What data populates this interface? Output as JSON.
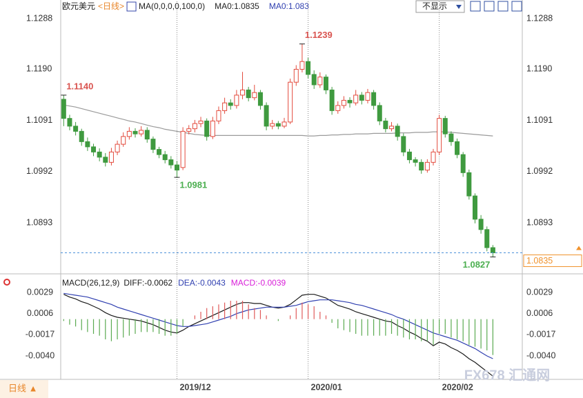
{
  "header": {
    "symbol": "欧元美元",
    "period": "<日线>",
    "ma_label": "MA(0,0,0,0,100,0)",
    "ma_value": "MA0:1.0835",
    "ma_value_alt": "MA0:1.083",
    "dropdown": "不显示"
  },
  "footer": {
    "period": "日线 ▲",
    "watermark": "FX678 汇通网"
  },
  "chart_data": [
    {
      "type": "candlestick",
      "categories": [
        null,
        null,
        null,
        null,
        null,
        null,
        null,
        null,
        null,
        null,
        null,
        null,
        null,
        null,
        null,
        null,
        null,
        null,
        null,
        "2019/12",
        null,
        null,
        null,
        null,
        null,
        null,
        null,
        null,
        null,
        null,
        null,
        null,
        null,
        null,
        null,
        null,
        null,
        null,
        null,
        null,
        null,
        "2020/01",
        null,
        null,
        null,
        null,
        null,
        null,
        null,
        null,
        null,
        null,
        null,
        null,
        null,
        null,
        null,
        null,
        null,
        null,
        null,
        null,
        null,
        "2020/02",
        null,
        null,
        null,
        null,
        null,
        null,
        null,
        null,
        null
      ],
      "values": [
        [
          1.1132,
          1.114,
          1.108,
          1.1095
        ],
        [
          1.1095,
          1.1102,
          1.1072,
          1.108
        ],
        [
          1.108,
          1.1088,
          1.1062,
          1.107
        ],
        [
          1.107,
          1.1075,
          1.1042,
          1.105
        ],
        [
          1.105,
          1.1058,
          1.1032,
          1.104
        ],
        [
          1.104,
          1.1046,
          1.1022,
          1.103
        ],
        [
          1.103,
          1.1037,
          1.1012,
          1.102
        ],
        [
          1.102,
          1.1028,
          1.1002,
          1.101
        ],
        [
          1.101,
          1.1038,
          1.1004,
          1.103
        ],
        [
          1.103,
          1.1052,
          1.1024,
          1.1045
        ],
        [
          1.1045,
          1.1068,
          1.104,
          1.106
        ],
        [
          1.106,
          1.1078,
          1.1054,
          1.107
        ],
        [
          1.107,
          1.1076,
          1.1058,
          1.1065
        ],
        [
          1.1065,
          1.108,
          1.106,
          1.1072
        ],
        [
          1.1072,
          1.1078,
          1.1048,
          1.1055
        ],
        [
          1.1055,
          1.106,
          1.1028,
          1.1035
        ],
        [
          1.1035,
          1.104,
          1.1018,
          1.1025
        ],
        [
          1.1025,
          1.1032,
          1.1008,
          1.1015
        ],
        [
          1.1015,
          1.1022,
          1.0998,
          1.1005
        ],
        [
          1.1005,
          1.1012,
          1.0981,
          1.0995
        ],
        [
          1.1,
          1.1078,
          1.0995,
          1.107
        ],
        [
          1.107,
          1.1082,
          1.1064,
          1.1075
        ],
        [
          1.1075,
          1.1092,
          1.1068,
          1.1085
        ],
        [
          1.1085,
          1.1098,
          1.1078,
          1.109
        ],
        [
          1.109,
          1.1095,
          1.1052,
          1.106
        ],
        [
          1.106,
          1.1098,
          1.1055,
          1.109
        ],
        [
          1.109,
          1.1118,
          1.1084,
          1.111
        ],
        [
          1.111,
          1.1135,
          1.1104,
          1.1125
        ],
        [
          1.1125,
          1.1132,
          1.1112,
          1.112
        ],
        [
          1.112,
          1.115,
          1.1114,
          1.114
        ],
        [
          1.114,
          1.1185,
          1.1132,
          1.115
        ],
        [
          1.115,
          1.1156,
          1.1128,
          1.1135
        ],
        [
          1.1135,
          1.116,
          1.113,
          1.1145
        ],
        [
          1.1145,
          1.115,
          1.1112,
          1.112
        ],
        [
          1.112,
          1.1126,
          1.1072,
          1.108
        ],
        [
          1.108,
          1.1092,
          1.1074,
          1.1085
        ],
        [
          1.1085,
          1.109,
          1.1074,
          1.108
        ],
        [
          1.108,
          1.1096,
          1.1076,
          1.1088
        ],
        [
          1.1088,
          1.1172,
          1.1084,
          1.1165
        ],
        [
          1.1165,
          1.1198,
          1.1158,
          1.119
        ],
        [
          1.119,
          1.1239,
          1.1184,
          1.1205
        ],
        [
          1.1205,
          1.1212,
          1.1172,
          1.118
        ],
        [
          1.118,
          1.1188,
          1.1152,
          1.116
        ],
        [
          1.116,
          1.1184,
          1.1154,
          1.1175
        ],
        [
          1.1175,
          1.118,
          1.1142,
          1.115
        ],
        [
          1.115,
          1.1156,
          1.1102,
          1.111
        ],
        [
          1.111,
          1.1128,
          1.1104,
          1.112
        ],
        [
          1.112,
          1.1138,
          1.1114,
          1.113
        ],
        [
          1.113,
          1.1136,
          1.1116,
          1.1125
        ],
        [
          1.1125,
          1.115,
          1.112,
          1.114
        ],
        [
          1.114,
          1.1146,
          1.1122,
          1.113
        ],
        [
          1.113,
          1.1152,
          1.1124,
          1.1145
        ],
        [
          1.1145,
          1.115,
          1.1112,
          1.112
        ],
        [
          1.112,
          1.1126,
          1.1082,
          1.109
        ],
        [
          1.109,
          1.1096,
          1.1068,
          1.1075
        ],
        [
          1.1075,
          1.1088,
          1.107,
          1.108
        ],
        [
          1.108,
          1.1085,
          1.1052,
          1.106
        ],
        [
          1.106,
          1.1066,
          1.1022,
          1.103
        ],
        [
          1.103,
          1.1036,
          1.1008,
          1.1015
        ],
        [
          1.1015,
          1.102,
          1.1002,
          1.101
        ],
        [
          1.101,
          1.1016,
          1.0988,
          1.0995
        ],
        [
          1.0995,
          1.1016,
          1.099,
          1.101
        ],
        [
          1.101,
          1.1036,
          1.1004,
          1.103
        ],
        [
          1.103,
          1.1102,
          1.1024,
          1.1095
        ],
        [
          1.1095,
          1.11,
          1.1058,
          1.1065
        ],
        [
          1.1065,
          1.107,
          1.1042,
          1.105
        ],
        [
          1.105,
          1.1056,
          1.1018,
          1.1025
        ],
        [
          1.1025,
          1.103,
          1.0982,
          1.099
        ],
        [
          1.099,
          1.0996,
          1.0938,
          1.0945
        ],
        [
          1.0945,
          1.095,
          1.0892,
          1.09
        ],
        [
          1.09,
          1.0908,
          1.0872,
          1.088
        ],
        [
          1.088,
          1.0886,
          1.0838,
          1.0845
        ],
        [
          1.0845,
          1.085,
          1.0827,
          1.0835
        ]
      ],
      "up_color": "#e34a3c",
      "down_color": "#3f9a3f",
      "ma": {
        "color": "#9a9a9a",
        "values": [
          1.1121,
          1.1119,
          1.1117,
          1.1114,
          1.1111,
          1.1108,
          1.1105,
          1.1102,
          1.1099,
          1.1096,
          1.1093,
          1.109,
          1.1088,
          1.1085,
          1.1082,
          1.1079,
          1.1077,
          1.1074,
          1.1072,
          1.107,
          1.1068,
          1.1066,
          1.1064,
          1.1063,
          1.1062,
          1.1062,
          1.1062,
          1.1062,
          1.1062,
          1.1062,
          1.1062,
          1.1062,
          1.1062,
          1.1062,
          1.1062,
          1.1062,
          1.1062,
          1.1062,
          1.1062,
          1.1062,
          1.1062,
          1.1061,
          1.1061,
          1.1062,
          1.1062,
          1.1063,
          1.1063,
          1.1064,
          1.1064,
          1.1065,
          1.1065,
          1.1065,
          1.1066,
          1.1066,
          1.1066,
          1.1066,
          1.1067,
          1.1067,
          1.1067,
          1.1068,
          1.1068,
          1.1068,
          1.1069,
          1.1069,
          1.1069,
          1.1068,
          1.1067,
          1.1066,
          1.1065,
          1.1064,
          1.1063,
          1.1062,
          1.1061
        ]
      },
      "extremes": [
        {
          "value": 1.114,
          "label": "1.1140",
          "kind": "high"
        },
        {
          "value": 1.0981,
          "label": "1.0981",
          "kind": "low"
        },
        {
          "value": 1.1239,
          "label": "1.1239",
          "kind": "high"
        },
        {
          "value": 1.0827,
          "label": "1.0827",
          "kind": "low"
        }
      ],
      "last": 1.0835,
      "ylim": [
        1.0797,
        1.1308
      ],
      "yticks": [
        1.1288,
        {
          "value": 1.119,
          "label": "1.1190"
        },
        1.1091,
        1.0992,
        1.0893
      ]
    },
    {
      "type": "macd",
      "title": "MACD(26,12,9)",
      "ylim": [
        -0.0064,
        0.0047
      ],
      "yticks": [
        0.0029,
        0.0006,
        -0.0017,
        {
          "value": -0.004,
          "label": "-0.0040"
        }
      ],
      "series": [
        {
          "name": "DIFF:-0.0062",
          "color": "#1a1a1a",
          "values": [
            0.0027,
            0.0024,
            0.0022,
            0.0019,
            0.0017,
            0.0014,
            0.0011,
            0.0007,
            0.0004,
            0.0002,
            0.0001,
            0.0,
            -0.0001,
            -0.0002,
            -0.0004,
            -0.0006,
            -0.0009,
            -0.0012,
            -0.0014,
            -0.0015,
            -0.0012,
            -0.0008,
            -0.0005,
            -0.0002,
            0.0001,
            0.0004,
            0.0007,
            0.001,
            0.0013,
            0.0016,
            0.0018,
            0.0018,
            0.0017,
            0.0017,
            0.0015,
            0.0013,
            0.0012,
            0.0013,
            0.0016,
            0.0021,
            0.0026,
            0.0027,
            0.0027,
            0.0025,
            0.0023,
            0.0019,
            0.0015,
            0.0013,
            0.0011,
            0.0008,
            0.0006,
            0.0004,
            0.0002,
            0.0,
            -0.0002,
            -0.0003,
            -0.0007,
            -0.001,
            -0.0014,
            -0.0017,
            -0.0021,
            -0.0024,
            -0.0029,
            -0.0025,
            -0.0027,
            -0.0031,
            -0.0034,
            -0.0038,
            -0.0043,
            -0.0047,
            -0.0052,
            -0.0057,
            -0.0062
          ]
        },
        {
          "name": "DEA:-0.0043",
          "color": "#2f3fb0",
          "values": [
            0.0028,
            0.0027,
            0.0026,
            0.0025,
            0.0024,
            0.0022,
            0.002,
            0.0018,
            0.0016,
            0.0013,
            0.0011,
            0.0009,
            0.0007,
            0.0005,
            0.0003,
            0.0001,
            -0.0001,
            -0.0003,
            -0.0005,
            -0.0007,
            -0.0008,
            -0.0008,
            -0.0007,
            -0.0006,
            -0.0005,
            -0.0003,
            -0.0001,
            0.0001,
            0.0003,
            0.0006,
            0.0008,
            0.001,
            0.0011,
            0.0012,
            0.0013,
            0.0013,
            0.0013,
            0.0013,
            0.0014,
            0.0015,
            0.0017,
            0.0019,
            0.002,
            0.0021,
            0.0021,
            0.0021,
            0.002,
            0.0019,
            0.0018,
            0.0016,
            0.0015,
            0.0013,
            0.0011,
            0.0009,
            0.0007,
            0.0005,
            0.0002,
            0.0,
            -0.0003,
            -0.0006,
            -0.0009,
            -0.0012,
            -0.0015,
            -0.0017,
            -0.0019,
            -0.0021,
            -0.0023,
            -0.0026,
            -0.0029,
            -0.0032,
            -0.0036,
            -0.004,
            -0.0043
          ]
        },
        {
          "name": "MACD:-0.0039",
          "color": "#d81ed8",
          "up_color": "#e05a5a",
          "down_color": "#5aaa50",
          "bars": true,
          "values": [
            -0.0002,
            -0.0006,
            -0.0008,
            -0.0012,
            -0.0014,
            -0.0016,
            -0.0018,
            -0.0022,
            -0.0024,
            -0.0022,
            -0.002,
            -0.0018,
            -0.0016,
            -0.0014,
            -0.0014,
            -0.0014,
            -0.0016,
            -0.0018,
            -0.0018,
            -0.0016,
            -0.0008,
            0.0,
            0.0004,
            0.0008,
            0.0012,
            0.0014,
            0.0016,
            0.0018,
            0.002,
            0.002,
            0.002,
            0.0016,
            0.0012,
            0.001,
            0.0004,
            0.0,
            -0.0002,
            0.0,
            0.0004,
            0.0012,
            0.0018,
            0.0016,
            0.0014,
            0.0008,
            0.0004,
            -0.0004,
            -0.001,
            -0.0012,
            -0.0014,
            -0.0016,
            -0.0018,
            -0.0018,
            -0.0018,
            -0.0018,
            -0.0018,
            -0.0016,
            -0.0018,
            -0.002,
            -0.0022,
            -0.0022,
            -0.0024,
            -0.0024,
            -0.0028,
            -0.0016,
            -0.0016,
            -0.002,
            -0.0022,
            -0.0024,
            -0.0028,
            -0.003,
            -0.0032,
            -0.0034,
            -0.0039
          ]
        }
      ]
    }
  ]
}
